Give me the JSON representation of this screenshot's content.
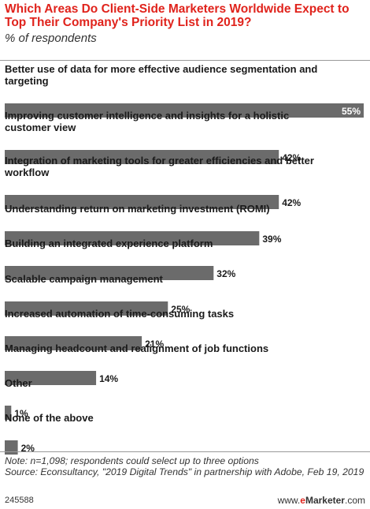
{
  "chart_data": {
    "type": "bar",
    "orientation": "horizontal",
    "title": "Which Areas Do Client-Side Marketers Worldwide Expect to Top Their Company's Priority List in 2019?",
    "subtitle": "% of respondents",
    "categories": [
      "Better use of data for more effective audience segmentation and targeting",
      "Improving customer intelligence and insights for a holistic customer view",
      "Integration of marketing tools for greater efficiencies and better workflow",
      "Understanding return on marketing investment (ROMI)",
      "Building an integrated experience platform",
      "Scalable campaign management",
      "Increased automation of time-consuming tasks",
      "Managing headcount and realignment of job functions",
      "Other",
      "None of the above"
    ],
    "category_lines": [
      [
        "Better use of data for more effective audience segmentation and",
        "targeting"
      ],
      [
        "Improving customer intelligence and insights for a holistic",
        "customer view"
      ],
      [
        "Integration of marketing tools for greater efficiencies and better",
        "workflow"
      ],
      [
        "Understanding return on marketing investment (ROMI)"
      ],
      [
        "Building an integrated experience platform"
      ],
      [
        "Scalable campaign management"
      ],
      [
        "Increased automation of time-consuming tasks"
      ],
      [
        "Managing headcount and realignment of job functions"
      ],
      [
        "Other"
      ],
      [
        "None of the above"
      ]
    ],
    "values": [
      55,
      42,
      42,
      39,
      32,
      25,
      21,
      14,
      1,
      2
    ],
    "value_labels": [
      "55%",
      "42%",
      "42%",
      "39%",
      "32%",
      "25%",
      "21%",
      "14%",
      "1%",
      "2%"
    ],
    "xlim": [
      0,
      55
    ],
    "grid": false,
    "legend": "none",
    "bar_color": "#6b6b6b"
  },
  "note": "Note: n=1,098; respondents could select up to three options",
  "source": "Source: Econsultancy, \"2019 Digital Trends\" in partnership with Adobe, Feb 19, 2019",
  "chart_id": "245588",
  "brand": {
    "prefix": "www.",
    "e": "e",
    "rest": "Marketer",
    "suffix": ".com"
  }
}
